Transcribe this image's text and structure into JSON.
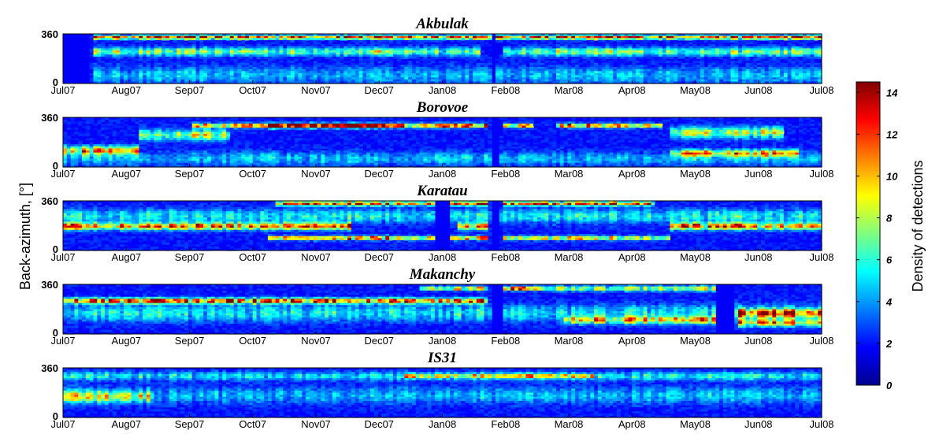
{
  "chart_data": {
    "type": "heatmap",
    "ylabel": "Back-azimuth, [°]",
    "colorbar": {
      "label": "Density of detections",
      "ticks": [
        "0",
        "2",
        "4",
        "6",
        "8",
        "10",
        "12",
        "14"
      ],
      "range": [
        0,
        14.5
      ],
      "colormap": "jet"
    },
    "x_ticks": [
      "Jul07",
      "Aug07",
      "Sep07",
      "Oct07",
      "Nov07",
      "Dec07",
      "Jan08",
      "Feb08",
      "Mar08",
      "Apr08",
      "May08",
      "Jun08",
      "Jul08"
    ],
    "y_ticks": [
      "0",
      "360"
    ],
    "ylim": [
      0,
      360
    ],
    "panels": [
      {
        "title": "Akbulak",
        "gaps": [
          [
            0.0,
            0.035
          ],
          [
            0.565,
            0.572
          ]
        ],
        "bands": [
          {
            "from": 0.04,
            "to": 1.0,
            "center": 335,
            "width": 15,
            "value": 12
          },
          {
            "from": 0.04,
            "to": 0.55,
            "center": 230,
            "width": 30,
            "value": 6
          },
          {
            "from": 0.58,
            "to": 1.0,
            "center": 230,
            "width": 30,
            "value": 6
          },
          {
            "from": 0.04,
            "to": 1.0,
            "center": 60,
            "width": 60,
            "value": 3
          }
        ]
      },
      {
        "title": "Borovoe",
        "gaps": [
          [
            0.565,
            0.575
          ]
        ],
        "bands": [
          {
            "from": 0.0,
            "to": 0.1,
            "center": 120,
            "width": 30,
            "value": 9
          },
          {
            "from": 0.1,
            "to": 0.22,
            "center": 230,
            "width": 40,
            "value": 7
          },
          {
            "from": 0.17,
            "to": 0.45,
            "center": 300,
            "width": 15,
            "value": 10
          },
          {
            "from": 0.27,
            "to": 0.56,
            "center": 300,
            "width": 15,
            "value": 12
          },
          {
            "from": 0.58,
            "to": 0.62,
            "center": 300,
            "width": 15,
            "value": 11
          },
          {
            "from": 0.65,
            "to": 0.79,
            "center": 300,
            "width": 15,
            "value": 12
          },
          {
            "from": 0.8,
            "to": 0.95,
            "center": 250,
            "width": 40,
            "value": 7
          },
          {
            "from": 0.8,
            "to": 0.97,
            "center": 100,
            "width": 25,
            "value": 8
          },
          {
            "from": 0.0,
            "to": 1.0,
            "center": 60,
            "width": 50,
            "value": 3
          }
        ]
      },
      {
        "title": "Karatau",
        "gaps": [
          [
            0.49,
            0.51
          ],
          [
            0.565,
            0.575
          ]
        ],
        "bands": [
          {
            "from": 0.0,
            "to": 0.38,
            "center": 175,
            "width": 25,
            "value": 11
          },
          {
            "from": 0.52,
            "to": 0.56,
            "center": 175,
            "width": 25,
            "value": 9
          },
          {
            "from": 0.8,
            "to": 1.0,
            "center": 175,
            "width": 25,
            "value": 10
          },
          {
            "from": 0.27,
            "to": 0.56,
            "center": 90,
            "width": 15,
            "value": 11
          },
          {
            "from": 0.58,
            "to": 0.8,
            "center": 90,
            "width": 15,
            "value": 9
          },
          {
            "from": 0.28,
            "to": 0.56,
            "center": 340,
            "width": 15,
            "value": 12
          },
          {
            "from": 0.58,
            "to": 0.78,
            "center": 340,
            "width": 15,
            "value": 12
          },
          {
            "from": 0.0,
            "to": 1.0,
            "center": 250,
            "width": 50,
            "value": 4
          }
        ]
      },
      {
        "title": "Makanchy",
        "gaps": [
          [
            0.565,
            0.578
          ],
          [
            0.86,
            0.885
          ]
        ],
        "bands": [
          {
            "from": 0.0,
            "to": 0.56,
            "center": 240,
            "width": 20,
            "value": 12
          },
          {
            "from": 0.58,
            "to": 0.63,
            "center": 330,
            "width": 15,
            "value": 12
          },
          {
            "from": 0.63,
            "to": 0.86,
            "center": 330,
            "width": 20,
            "value": 7
          },
          {
            "from": 0.47,
            "to": 0.56,
            "center": 330,
            "width": 15,
            "value": 9
          },
          {
            "from": 0.66,
            "to": 0.86,
            "center": 100,
            "width": 25,
            "value": 8
          },
          {
            "from": 0.89,
            "to": 1.0,
            "center": 150,
            "width": 30,
            "value": 10
          },
          {
            "from": 0.89,
            "to": 1.0,
            "center": 80,
            "width": 25,
            "value": 9
          },
          {
            "from": 0.0,
            "to": 1.0,
            "center": 150,
            "width": 60,
            "value": 4
          }
        ]
      },
      {
        "title": "IS31",
        "gaps": [],
        "bands": [
          {
            "from": 0.0,
            "to": 1.0,
            "center": 300,
            "width": 30,
            "value": 4
          },
          {
            "from": 0.45,
            "to": 0.7,
            "center": 300,
            "width": 15,
            "value": 6
          },
          {
            "from": 0.0,
            "to": 1.0,
            "center": 160,
            "width": 60,
            "value": 3
          },
          {
            "from": 0.0,
            "to": 0.12,
            "center": 150,
            "width": 40,
            "value": 5
          }
        ]
      }
    ]
  }
}
